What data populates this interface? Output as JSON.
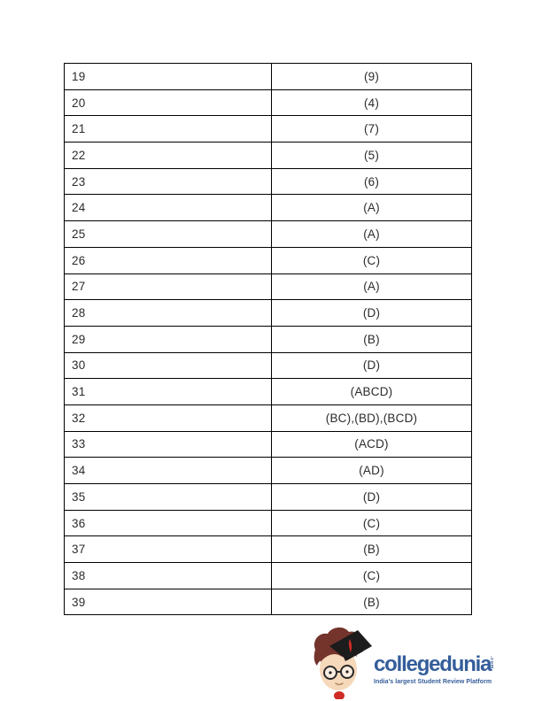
{
  "table": {
    "rows": [
      {
        "no": "19",
        "answer": "(9)"
      },
      {
        "no": "20",
        "answer": "(4)"
      },
      {
        "no": "21",
        "answer": "(7)"
      },
      {
        "no": "22",
        "answer": "(5)"
      },
      {
        "no": "23",
        "answer": "(6)"
      },
      {
        "no": "24",
        "answer": "(A)"
      },
      {
        "no": "25",
        "answer": "(A)"
      },
      {
        "no": "26",
        "answer": "(C)"
      },
      {
        "no": "27",
        "answer": "(A)"
      },
      {
        "no": "28",
        "answer": "(D)"
      },
      {
        "no": "29",
        "answer": "(B)"
      },
      {
        "no": "30",
        "answer": "(D)"
      },
      {
        "no": "31",
        "answer": "(ABCD)"
      },
      {
        "no": "32",
        "answer": "(BC),(BD),(BCD)"
      },
      {
        "no": "33",
        "answer": "(ACD)"
      },
      {
        "no": "34",
        "answer": "(AD)"
      },
      {
        "no": "35",
        "answer": "(D)"
      },
      {
        "no": "36",
        "answer": "(C)"
      },
      {
        "no": "37",
        "answer": "(B)"
      },
      {
        "no": "38",
        "answer": "(C)"
      },
      {
        "no": "39",
        "answer": "(B)"
      }
    ]
  },
  "logo": {
    "brand": "collegedunia",
    "domain_suffix": ".com",
    "tagline": "India's largest Student Review Platform",
    "brand_color": "#345d9a",
    "mascot_colors": {
      "hair": "#74342c",
      "cap": "#1c1c1c",
      "tassel": "#cf2b27",
      "skin": "#f6d8ba",
      "glasses": "#2a2a2a",
      "shirt": "#cf2b27"
    }
  },
  "colors": {
    "table_border": "#000000",
    "table_text": "#2b2b2b",
    "page_background": "#ffffff"
  }
}
